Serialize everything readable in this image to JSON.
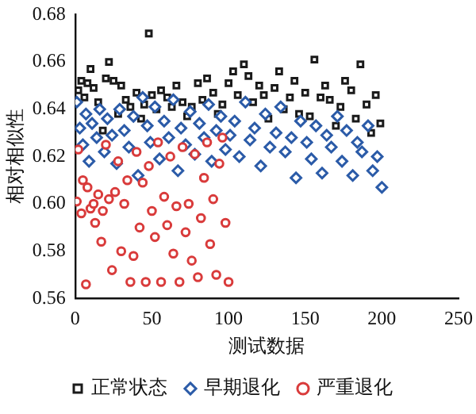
{
  "chart_data": {
    "type": "scatter",
    "xlabel": "测试数据",
    "ylabel": "相对相似性",
    "xlim": [
      0,
      250
    ],
    "xticks": [
      0,
      50,
      100,
      150,
      200,
      250
    ],
    "ylim": [
      0.56,
      0.68
    ],
    "yticks": [
      {
        "value": 0.56,
        "label": "0.56"
      },
      {
        "value": 0.58,
        "label": "0.58"
      },
      {
        "value": 0.6,
        "label": "0.60"
      },
      {
        "value": 0.62,
        "label": "0.62"
      },
      {
        "value": 0.64,
        "label": "0.64"
      },
      {
        "value": 0.66,
        "label": "0.66"
      },
      {
        "value": 0.68,
        "label": "0.68"
      }
    ],
    "grid": false,
    "legend": "bottom",
    "series": [
      {
        "name": "正常状态",
        "color": "#1a1a1a",
        "marker": "square",
        "x": [
          2,
          4,
          6,
          8,
          10,
          12,
          15,
          18,
          20,
          22,
          25,
          28,
          30,
          33,
          36,
          40,
          43,
          45,
          48,
          50,
          53,
          56,
          60,
          63,
          66,
          70,
          73,
          76,
          80,
          83,
          86,
          90,
          93,
          96,
          100,
          103,
          106,
          110,
          113,
          116,
          120,
          123,
          126,
          130,
          133,
          136,
          140,
          143,
          146,
          150,
          153,
          156,
          160,
          163,
          166,
          170,
          173,
          176,
          180,
          183,
          186,
          190,
          193,
          196,
          199
        ],
        "values": [
          0.648,
          0.652,
          0.645,
          0.651,
          0.657,
          0.649,
          0.643,
          0.631,
          0.653,
          0.66,
          0.652,
          0.638,
          0.65,
          0.644,
          0.641,
          0.647,
          0.636,
          0.642,
          0.672,
          0.646,
          0.64,
          0.648,
          0.645,
          0.641,
          0.65,
          0.643,
          0.637,
          0.641,
          0.651,
          0.644,
          0.653,
          0.647,
          0.638,
          0.642,
          0.651,
          0.656,
          0.646,
          0.659,
          0.654,
          0.643,
          0.65,
          0.646,
          0.636,
          0.649,
          0.656,
          0.64,
          0.645,
          0.652,
          0.638,
          0.647,
          0.637,
          0.661,
          0.645,
          0.65,
          0.644,
          0.633,
          0.641,
          0.652,
          0.648,
          0.636,
          0.659,
          0.642,
          0.63,
          0.646,
          0.634
        ]
      },
      {
        "name": "早期退化",
        "color": "#2b5ba8",
        "marker": "diamond",
        "x": [
          1,
          3,
          5,
          7,
          9,
          11,
          14,
          16,
          19,
          21,
          24,
          27,
          29,
          32,
          35,
          38,
          41,
          44,
          47,
          49,
          52,
          55,
          58,
          61,
          64,
          67,
          69,
          72,
          75,
          78,
          81,
          84,
          87,
          89,
          92,
          95,
          98,
          101,
          104,
          107,
          111,
          114,
          117,
          121,
          124,
          127,
          131,
          134,
          137,
          141,
          144,
          147,
          151,
          154,
          157,
          161,
          164,
          167,
          171,
          174,
          177,
          181,
          184,
          187,
          191,
          194,
          197,
          200
        ],
        "values": [
          0.643,
          0.632,
          0.625,
          0.638,
          0.618,
          0.634,
          0.628,
          0.64,
          0.622,
          0.636,
          0.629,
          0.617,
          0.64,
          0.631,
          0.624,
          0.637,
          0.612,
          0.645,
          0.633,
          0.626,
          0.641,
          0.619,
          0.635,
          0.628,
          0.644,
          0.614,
          0.632,
          0.625,
          0.639,
          0.621,
          0.634,
          0.628,
          0.642,
          0.618,
          0.631,
          0.637,
          0.623,
          0.629,
          0.635,
          0.62,
          0.643,
          0.627,
          0.632,
          0.616,
          0.638,
          0.624,
          0.63,
          0.641,
          0.622,
          0.628,
          0.611,
          0.635,
          0.626,
          0.619,
          0.633,
          0.613,
          0.629,
          0.624,
          0.637,
          0.618,
          0.631,
          0.612,
          0.626,
          0.622,
          0.633,
          0.614,
          0.62,
          0.607
        ]
      },
      {
        "name": "严重退化",
        "color": "#d93b3b",
        "marker": "circle",
        "x": [
          1,
          2,
          4,
          5,
          7,
          8,
          10,
          12,
          13,
          15,
          17,
          18,
          20,
          22,
          24,
          26,
          28,
          30,
          32,
          34,
          36,
          38,
          40,
          42,
          44,
          46,
          48,
          50,
          52,
          54,
          56,
          58,
          60,
          62,
          64,
          66,
          68,
          70,
          72,
          74,
          76,
          78,
          80,
          82,
          84,
          86,
          88,
          90,
          92,
          94,
          96,
          98,
          100
        ],
        "values": [
          0.601,
          0.623,
          0.596,
          0.61,
          0.566,
          0.607,
          0.598,
          0.6,
          0.592,
          0.604,
          0.584,
          0.597,
          0.625,
          0.602,
          0.572,
          0.605,
          0.618,
          0.58,
          0.6,
          0.61,
          0.567,
          0.578,
          0.622,
          0.59,
          0.609,
          0.567,
          0.616,
          0.597,
          0.586,
          0.626,
          0.567,
          0.603,
          0.591,
          0.62,
          0.579,
          0.599,
          0.567,
          0.624,
          0.588,
          0.6,
          0.576,
          0.621,
          0.569,
          0.594,
          0.611,
          0.626,
          0.583,
          0.602,
          0.57,
          0.617,
          0.628,
          0.592,
          0.567
        ]
      }
    ]
  }
}
